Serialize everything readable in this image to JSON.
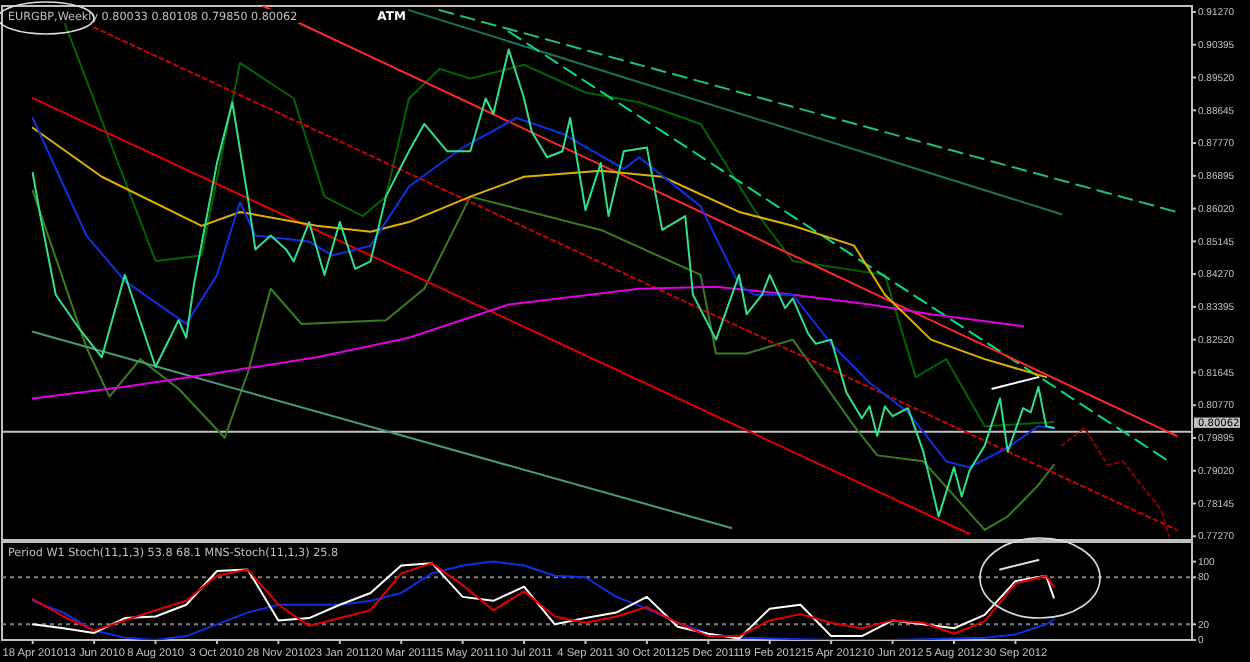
{
  "chart_data": [
    {
      "type": "line",
      "title": "EURGBP,Weekly  0.80033 0.80108 0.79850 0.80062",
      "annotations": [
        "ATM"
      ],
      "tick_labels": "y",
      "marker": "none",
      "xlim": [
        "2010-03-21",
        "2013-03-10"
      ],
      "ylim": [
        0.7717,
        0.9143
      ],
      "yticks": [
        {
          "value": 0.9127,
          "label": "0.91270"
        },
        {
          "value": 0.90395,
          "label": "0.90395"
        },
        {
          "value": 0.8952,
          "label": "0.89520"
        },
        {
          "value": 0.88645,
          "label": "0.88645"
        },
        {
          "value": 0.8777,
          "label": "0.87770"
        },
        {
          "value": 0.86895,
          "label": "0.86895"
        },
        {
          "value": 0.8602,
          "label": "0.86020"
        },
        {
          "value": 0.85145,
          "label": "0.85145"
        },
        {
          "value": 0.8427,
          "label": "0.84270"
        },
        {
          "value": 0.83395,
          "label": "0.83395"
        },
        {
          "value": 0.8252,
          "label": "0.82520"
        },
        {
          "value": 0.81645,
          "label": "0.81645"
        },
        {
          "value": 0.8077,
          "label": "0.80770"
        },
        {
          "value": 0.79895,
          "label": "0.79895"
        },
        {
          "value": 0.7902,
          "label": "0.79020"
        },
        {
          "value": 0.78145,
          "label": "0.78145"
        },
        {
          "value": 0.7727,
          "label": "0.77270"
        }
      ],
      "ref_lines": [
        {
          "axis": "y",
          "value": 0.80062,
          "label": "0.80062",
          "color": "#c0c0c0",
          "line_style": "solid"
        }
      ],
      "series": [
        {
          "color": "#006400",
          "line_style": "solid",
          "x": [
            "2010-05-16",
            "2010-08-08",
            "2010-09-19",
            "2010-10-24",
            "2010-12-12",
            "2011-01-09",
            "2011-02-13",
            "2011-03-06",
            "2011-03-27",
            "2011-04-24",
            "2011-05-22",
            "2011-07-10",
            "2011-09-04",
            "2011-10-23",
            "2011-12-18",
            "2012-02-05",
            "2012-03-11",
            "2012-06-03",
            "2012-07-01",
            "2012-07-29",
            "2012-09-02",
            "2012-11-04"
          ],
          "values": [
            0.9106,
            0.8462,
            0.8477,
            0.8991,
            0.8896,
            0.8634,
            0.8582,
            0.8634,
            0.8896,
            0.8975,
            0.8949,
            0.8986,
            0.8912,
            0.8886,
            0.8828,
            0.8598,
            0.8462,
            0.8425,
            0.8152,
            0.82,
            0.8021,
            0.8032
          ]
        },
        {
          "color": "#3a7d20",
          "line_style": "solid",
          "x": [
            "2010-04-18",
            "2010-06-06",
            "2010-06-27",
            "2010-07-25",
            "2010-08-29",
            "2010-10-10",
            "2010-10-31",
            "2010-11-21",
            "2010-12-19",
            "2011-03-06",
            "2011-04-10",
            "2011-05-22",
            "2011-09-18",
            "2011-12-18",
            "2012-01-01",
            "2012-01-29",
            "2012-03-11",
            "2012-05-06",
            "2012-05-27",
            "2012-07-08",
            "2012-09-02",
            "2012-09-23",
            "2012-10-21",
            "2012-11-04"
          ],
          "values": [
            0.865,
            0.8231,
            0.81,
            0.82,
            0.8121,
            0.799,
            0.8163,
            0.8388,
            0.8294,
            0.8304,
            0.8388,
            0.8634,
            0.8545,
            0.8425,
            0.8215,
            0.8215,
            0.8252,
            0.8021,
            0.7943,
            0.7927,
            0.7744,
            0.778,
            0.7864,
            0.7917
          ]
        },
        {
          "color": "#4a9a7a",
          "line_style": "solid",
          "x": [
            "2010-04-18",
            "2012-01-15"
          ],
          "values": [
            0.8273,
            0.7749
          ]
        },
        {
          "color": "#1f6f5f",
          "line_style": "solid",
          "x": [
            "2011-03-27",
            "2012-11-11"
          ],
          "values": [
            0.9132,
            0.8587
          ]
        },
        {
          "color": "#20c070",
          "line_style": "dashed",
          "x": [
            "2011-04-24",
            "2013-02-24"
          ],
          "values": [
            0.9132,
            0.8593
          ]
        },
        {
          "color": "#00e080",
          "line_style": "dashed",
          "x": [
            "2011-06-26",
            "2013-02-17"
          ],
          "values": [
            0.9075,
            0.7927
          ]
        },
        {
          "color": "#e00000",
          "line_style": "solid",
          "x": [
            "2010-04-18",
            "2012-08-19"
          ],
          "values": [
            0.8897,
            0.7733
          ]
        },
        {
          "color": "#ff2828",
          "line_style": "solid",
          "x": [
            "2010-11-14",
            "2013-02-24"
          ],
          "values": [
            0.9143,
            0.7995
          ]
        },
        {
          "color": "#d00000",
          "line_style": "dotted",
          "x": [
            "2010-06-13",
            "2013-02-24"
          ],
          "values": [
            0.9086,
            0.7744
          ]
        },
        {
          "color": "#e000e0",
          "line_style": "solid",
          "x": [
            "2010-04-18",
            "2010-07-11",
            "2010-10-03",
            "2011-01-02",
            "2011-03-27",
            "2011-06-26",
            "2011-10-23",
            "2012-01-01",
            "2012-03-11",
            "2012-05-20",
            "2012-07-15",
            "2012-10-07"
          ],
          "values": [
            0.8095,
            0.8126,
            0.8163,
            0.8205,
            0.8257,
            0.8346,
            0.8388,
            0.8393,
            0.8372,
            0.8346,
            0.832,
            0.8288
          ]
        },
        {
          "color": "#e0b000",
          "line_style": "solid",
          "x": [
            "2010-04-18",
            "2010-06-20",
            "2010-09-19",
            "2010-10-24",
            "2011-01-02",
            "2011-02-20",
            "2011-03-27",
            "2011-05-22",
            "2011-07-10",
            "2011-09-18",
            "2011-11-13",
            "2012-01-22",
            "2012-03-11",
            "2012-05-06",
            "2012-06-03",
            "2012-07-15",
            "2012-09-02",
            "2012-10-28"
          ],
          "values": [
            0.8818,
            0.8687,
            0.8556,
            0.8593,
            0.8556,
            0.854,
            0.8566,
            0.8634,
            0.8687,
            0.8703,
            0.8687,
            0.8593,
            0.8556,
            0.8503,
            0.8372,
            0.8252,
            0.82,
            0.8152
          ]
        },
        {
          "color": "#1030e0",
          "line_style": "solid",
          "x": [
            "2010-04-18",
            "2010-06-06",
            "2010-07-11",
            "2010-09-05",
            "2010-10-03",
            "2010-10-24",
            "2010-11-07",
            "2010-12-26",
            "2011-01-16",
            "2011-02-20",
            "2011-03-27",
            "2011-05-15",
            "2011-07-03",
            "2011-08-14",
            "2011-10-09",
            "2011-10-23",
            "2011-12-18",
            "2012-01-22",
            "2012-02-05",
            "2012-03-11",
            "2012-04-15",
            "2012-05-20",
            "2012-06-24",
            "2012-07-29",
            "2012-08-19",
            "2012-09-23",
            "2012-10-21",
            "2012-11-04"
          ],
          "values": [
            0.8844,
            0.853,
            0.8409,
            0.8294,
            0.8425,
            0.8619,
            0.853,
            0.8514,
            0.8477,
            0.8503,
            0.8661,
            0.8765,
            0.8844,
            0.8802,
            0.8708,
            0.8739,
            0.8608,
            0.8399,
            0.8372,
            0.8372,
            0.8241,
            0.8137,
            0.8058,
            0.7927,
            0.7911,
            0.7964,
            0.8021,
            0.8016
          ]
        },
        {
          "color": "#33e08a",
          "line_style": "solid",
          "x": [
            "2010-04-18",
            "2010-04-25",
            "2010-05-09",
            "2010-05-30",
            "2010-06-20",
            "2010-07-11",
            "2010-08-08",
            "2010-08-29",
            "2010-09-05",
            "2010-09-12",
            "2010-10-03",
            "2010-10-17",
            "2010-10-31",
            "2010-11-07",
            "2010-11-21",
            "2010-12-05",
            "2010-12-12",
            "2010-12-26",
            "2011-01-09",
            "2011-01-23",
            "2011-02-06",
            "2011-02-20",
            "2011-03-06",
            "2011-03-27",
            "2011-04-10",
            "2011-05-01",
            "2011-05-22",
            "2011-06-05",
            "2011-06-12",
            "2011-06-26",
            "2011-07-10",
            "2011-07-17",
            "2011-07-31",
            "2011-08-14",
            "2011-08-21",
            "2011-09-04",
            "2011-09-18",
            "2011-09-25",
            "2011-10-09",
            "2011-10-30",
            "2011-11-13",
            "2011-12-04",
            "2011-12-11",
            "2012-01-01",
            "2012-01-22",
            "2012-01-29",
            "2012-02-12",
            "2012-02-19",
            "2012-03-04",
            "2012-03-11",
            "2012-03-25",
            "2012-04-01",
            "2012-04-15",
            "2012-04-29",
            "2012-05-13",
            "2012-05-20",
            "2012-05-27",
            "2012-06-03",
            "2012-06-10",
            "2012-06-24",
            "2012-07-08",
            "2012-07-22",
            "2012-08-05",
            "2012-08-12",
            "2012-08-19",
            "2012-09-02",
            "2012-09-16",
            "2012-09-23",
            "2012-10-07",
            "2012-10-14",
            "2012-10-21",
            "2012-10-28",
            "2012-11-04"
          ],
          "values": [
            0.8697,
            0.8582,
            0.8372,
            0.8283,
            0.8205,
            0.8425,
            0.8179,
            0.8304,
            0.8257,
            0.8399,
            0.8724,
            0.8886,
            0.8634,
            0.8493,
            0.853,
            0.8493,
            0.8461,
            0.8566,
            0.8425,
            0.8566,
            0.8441,
            0.8461,
            0.8634,
            0.8755,
            0.8828,
            0.8755,
            0.8755,
            0.8896,
            0.8855,
            0.9027,
            0.8896,
            0.8807,
            0.8739,
            0.8755,
            0.8844,
            0.8598,
            0.8724,
            0.8582,
            0.8755,
            0.8765,
            0.8545,
            0.8582,
            0.8372,
            0.8252,
            0.8425,
            0.832,
            0.8372,
            0.8425,
            0.8336,
            0.8362,
            0.8268,
            0.8241,
            0.8252,
            0.811,
            0.8042,
            0.8074,
            0.7995,
            0.8074,
            0.8048,
            0.8069,
            0.7953,
            0.778,
            0.7911,
            0.7833,
            0.7901,
            0.7969,
            0.8095,
            0.7953,
            0.8069,
            0.8058,
            0.8126,
            0.8021,
            0.8016
          ]
        },
        {
          "color": "#ffffff",
          "line_style": "solid",
          "x": [
            "2012-09-09",
            "2012-10-21"
          ],
          "values": [
            0.8121,
            0.8152
          ]
        },
        {
          "color": "#8b0000",
          "line_style": "dotted",
          "x": [
            "2012-11-11",
            "2012-12-02",
            "2012-12-23",
            "2013-01-06",
            "2013-02-10",
            "2013-02-17"
          ],
          "values": [
            0.7969,
            0.8016,
            0.7917,
            0.7927,
            0.7796,
            0.7728
          ]
        }
      ]
    },
    {
      "type": "line",
      "title": "Period W1 Stoch(11,1,3) 53.8 68.1  MNS-Stoch(11,1,3)  25.8",
      "marker": "none",
      "xlim": [
        "2010-03-21",
        "2013-03-10"
      ],
      "ylim": [
        0,
        125
      ],
      "yticks": [
        100,
        80,
        20,
        0
      ],
      "xticks": [
        {
          "value": "2010-04-18",
          "label": "18 Apr 2010"
        },
        {
          "value": "2010-06-13",
          "label": "13 Jun 2010"
        },
        {
          "value": "2010-08-08",
          "label": "8 Aug 2010"
        },
        {
          "value": "2010-10-03",
          "label": "3 Oct 2010"
        },
        {
          "value": "2010-11-28",
          "label": "28 Nov 2010"
        },
        {
          "value": "2011-01-23",
          "label": "23 Jan 2011"
        },
        {
          "value": "2011-03-20",
          "label": "20 Mar 2011"
        },
        {
          "value": "2011-05-15",
          "label": "15 May 2011"
        },
        {
          "value": "2011-07-10",
          "label": "10 Jul 2011"
        },
        {
          "value": "2011-09-04",
          "label": "4 Sep 2011"
        },
        {
          "value": "2011-10-30",
          "label": "30 Oct 2011"
        },
        {
          "value": "2011-12-25",
          "label": "25 Dec 2011"
        },
        {
          "value": "2012-02-19",
          "label": "19 Feb 2012"
        },
        {
          "value": "2012-04-15",
          "label": "15 Apr 2012"
        },
        {
          "value": "2012-06-10",
          "label": "10 Jun 2012"
        },
        {
          "value": "2012-08-05",
          "label": "5 Aug 2012"
        },
        {
          "value": "2012-09-30",
          "label": "30 Sep 2012"
        }
      ],
      "ref_lines": [
        {
          "axis": "y",
          "value": 80,
          "color": "#808080",
          "line_style": "dotted"
        },
        {
          "axis": "y",
          "value": 20,
          "color": "#808080",
          "line_style": "dotted"
        }
      ],
      "x": [
        "2010-04-18",
        "2010-05-16",
        "2010-06-13",
        "2010-07-11",
        "2010-08-08",
        "2010-09-05",
        "2010-10-03",
        "2010-10-31",
        "2010-11-28",
        "2010-12-26",
        "2011-01-23",
        "2011-02-20",
        "2011-03-20",
        "2011-04-17",
        "2011-05-15",
        "2011-06-12",
        "2011-07-10",
        "2011-08-07",
        "2011-09-04",
        "2011-10-02",
        "2011-10-30",
        "2011-11-27",
        "2011-12-25",
        "2012-01-22",
        "2012-02-19",
        "2012-03-18",
        "2012-04-15",
        "2012-05-13",
        "2012-06-10",
        "2012-07-08",
        "2012-08-05",
        "2012-09-02",
        "2012-09-30",
        "2012-10-28",
        "2012-11-04"
      ],
      "series": [
        {
          "color": "#1030e0",
          "line_style": "solid",
          "values": [
            50,
            35,
            12,
            3,
            0,
            5,
            20,
            35,
            45,
            45,
            45,
            50,
            60,
            85,
            95,
            100,
            95,
            82,
            80,
            55,
            40,
            22,
            8,
            3,
            2,
            1,
            0,
            0,
            0,
            1,
            2,
            3,
            7,
            20,
            26
          ]
        },
        {
          "color": "#ffffff",
          "line_style": "solid",
          "values": [
            20,
            15,
            9,
            28,
            30,
            45,
            88,
            90,
            25,
            28,
            45,
            60,
            95,
            98,
            55,
            50,
            68,
            20,
            28,
            35,
            55,
            17,
            8,
            2,
            40,
            45,
            5,
            5,
            25,
            20,
            15,
            32,
            75,
            82,
            54
          ]
        },
        {
          "color": "#e00000",
          "line_style": "solid",
          "values": [
            52,
            30,
            12,
            25,
            38,
            50,
            82,
            90,
            45,
            18,
            28,
            38,
            85,
            98,
            70,
            38,
            62,
            30,
            22,
            30,
            42,
            22,
            5,
            5,
            25,
            33,
            22,
            15,
            25,
            22,
            8,
            24,
            72,
            82,
            68
          ]
        },
        {
          "color": "#e0e0e0",
          "line_style": "solid",
          "x": [
            "2012-09-16",
            "2012-10-21"
          ],
          "values": [
            90,
            102
          ]
        }
      ]
    }
  ]
}
